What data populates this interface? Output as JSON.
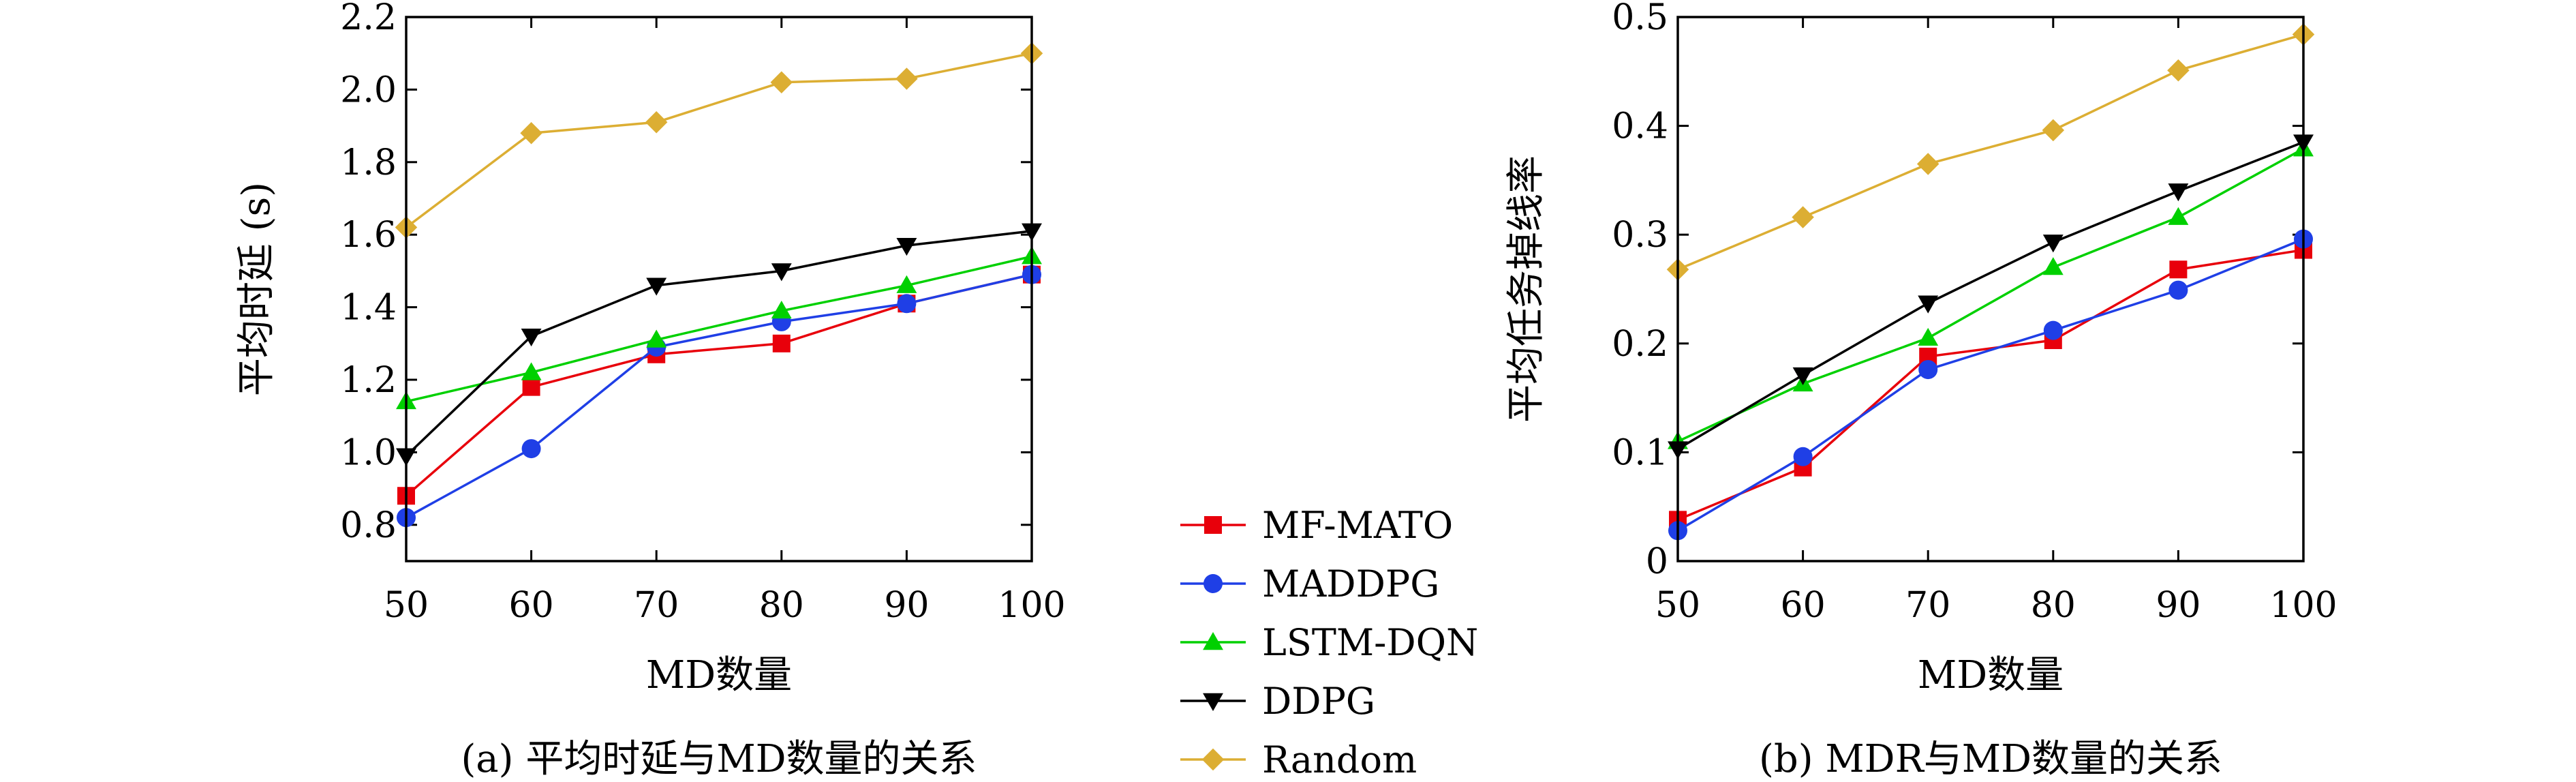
{
  "legend": [
    {
      "name": "MF-MATO",
      "color": "#e8000b",
      "marker": "square"
    },
    {
      "name": "MADDPG",
      "color": "#1f3fe6",
      "marker": "circle"
    },
    {
      "name": "LSTM-DQN",
      "color": "#00d000",
      "marker": "triangle-up"
    },
    {
      "name": "DDPG",
      "color": "#000000",
      "marker": "triangle-down"
    },
    {
      "name": "Random",
      "color": "#dcae33",
      "marker": "diamond"
    }
  ],
  "chart_data": [
    {
      "type": "line",
      "caption": "(a) 平均时延与MD数量的关系",
      "xlabel": "MD数量",
      "ylabel": "平均时延 (s)",
      "x": [
        50,
        60,
        70,
        80,
        90,
        100
      ],
      "xticks": [
        "50",
        "60",
        "70",
        "80",
        "90",
        "100"
      ],
      "yticks": [
        "0.8",
        "1.0",
        "1.2",
        "1.4",
        "1.6",
        "1.8",
        "2.0",
        "2.2"
      ],
      "xlim": [
        50,
        100
      ],
      "ylim": [
        0.7,
        2.2
      ],
      "grid": false,
      "series": [
        {
          "name": "MF-MATO",
          "values": [
            0.88,
            1.18,
            1.27,
            1.3,
            1.41,
            1.49
          ]
        },
        {
          "name": "MADDPG",
          "values": [
            0.82,
            1.01,
            1.29,
            1.36,
            1.41,
            1.49
          ]
        },
        {
          "name": "LSTM-DQN",
          "values": [
            1.14,
            1.22,
            1.31,
            1.39,
            1.46,
            1.54
          ]
        },
        {
          "name": "DDPG",
          "values": [
            0.99,
            1.32,
            1.46,
            1.5,
            1.57,
            1.61
          ]
        },
        {
          "name": "Random",
          "values": [
            1.62,
            1.88,
            1.91,
            2.02,
            2.03,
            2.1
          ]
        }
      ]
    },
    {
      "type": "line",
      "caption": "(b) MDR与MD数量的关系",
      "xlabel": "MD数量",
      "ylabel": "平均任务掉线率",
      "x": [
        50,
        60,
        70,
        80,
        90,
        100
      ],
      "xticks": [
        "50",
        "60",
        "70",
        "80",
        "90",
        "100"
      ],
      "yticks": [
        "0",
        "0.1",
        "0.2",
        "0.3",
        "0.4",
        "0.5"
      ],
      "xlim": [
        50,
        100
      ],
      "ylim": [
        0,
        0.5
      ],
      "grid": false,
      "series": [
        {
          "name": "MF-MATO",
          "values": [
            0.038,
            0.086,
            0.188,
            0.203,
            0.268,
            0.286
          ]
        },
        {
          "name": "MADDPG",
          "values": [
            0.028,
            0.096,
            0.176,
            0.212,
            0.249,
            0.296
          ]
        },
        {
          "name": "LSTM-DQN",
          "values": [
            0.11,
            0.163,
            0.205,
            0.27,
            0.316,
            0.379
          ]
        },
        {
          "name": "DDPG",
          "values": [
            0.103,
            0.171,
            0.237,
            0.293,
            0.34,
            0.385
          ]
        },
        {
          "name": "Random",
          "values": [
            0.268,
            0.316,
            0.365,
            0.396,
            0.451,
            0.484
          ]
        }
      ]
    }
  ]
}
